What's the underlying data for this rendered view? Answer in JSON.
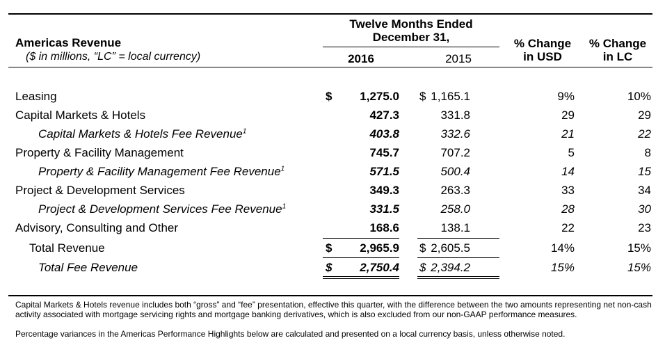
{
  "header": {
    "title": "Americas Revenue",
    "subtitle": "($ in millions, “LC” = local currency)",
    "period_line1": "Twelve Months Ended",
    "period_line2": "December 31,",
    "col_2016": "2016",
    "col_2015": "2015",
    "col_usd_line1": "% Change",
    "col_usd_line2": "in USD",
    "col_lc_line1": "% Change",
    "col_lc_line2": "in LC"
  },
  "rows": [
    {
      "label": "Leasing",
      "d1": "$",
      "v2016": "1,275.0",
      "d2": "$",
      "v2015": "1,165.1",
      "usd": "9%",
      "lc": "10%"
    },
    {
      "label": "Capital Markets & Hotels",
      "d1": "",
      "v2016": "427.3",
      "d2": "",
      "v2015": "331.8",
      "usd": "29",
      "lc": "29"
    },
    {
      "label": "Capital Markets & Hotels Fee Revenue",
      "sup": "1",
      "d1": "",
      "v2016": "403.8",
      "d2": "",
      "v2015": "332.6",
      "usd": "21",
      "lc": "22"
    },
    {
      "label": "Property & Facility Management",
      "d1": "",
      "v2016": "745.7",
      "d2": "",
      "v2015": "707.2",
      "usd": "5",
      "lc": "8"
    },
    {
      "label": "Property & Facility Management Fee Revenue",
      "sup": "1",
      "d1": "",
      "v2016": "571.5",
      "d2": "",
      "v2015": "500.4",
      "usd": "14",
      "lc": "15"
    },
    {
      "label": "Project & Development Services",
      "d1": "",
      "v2016": "349.3",
      "d2": "",
      "v2015": "263.3",
      "usd": "33",
      "lc": "34"
    },
    {
      "label": "Project & Development Services Fee Revenue",
      "sup": "1",
      "d1": "",
      "v2016": "331.5",
      "d2": "",
      "v2015": "258.0",
      "usd": "28",
      "lc": "30"
    },
    {
      "label": "Advisory, Consulting and Other",
      "d1": "",
      "v2016": "168.6",
      "d2": "",
      "v2015": "138.1",
      "usd": "22",
      "lc": "23"
    },
    {
      "label": "Total Revenue",
      "d1": "$",
      "v2016": "2,965.9",
      "d2": "$",
      "v2015": "2,605.5",
      "usd": "14%",
      "lc": "15%"
    },
    {
      "label": "Total Fee Revenue",
      "d1": "$",
      "v2016": "2,750.4",
      "d2": "$",
      "v2015": "2,394.2",
      "usd": "15%",
      "lc": "15%"
    }
  ],
  "notes": {
    "note1": "Capital Markets & Hotels revenue includes both “gross” and “fee” presentation, effective this quarter, with the difference between the two amounts representing net non-cash activity associated with mortgage servicing rights and mortgage banking derivatives, which is also excluded from our non-GAAP performance measures.",
    "note2": "Percentage variances in the Americas Performance Highlights below are calculated and presented on a local currency basis, unless otherwise noted."
  }
}
